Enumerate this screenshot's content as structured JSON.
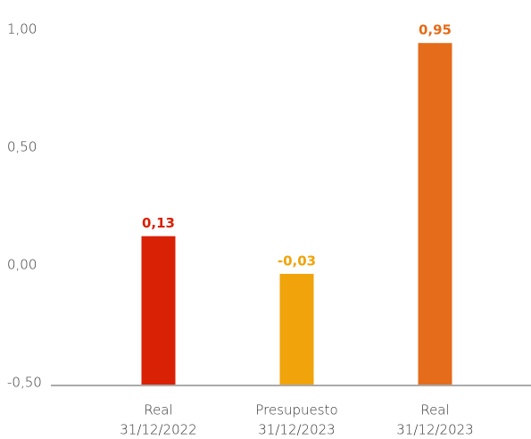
{
  "chart_data": {
    "type": "bar",
    "categories": [
      [
        "Real",
        "31/12/2022"
      ],
      [
        "Presupuesto",
        "31/12/2023"
      ],
      [
        "Real",
        "31/12/2023"
      ]
    ],
    "values": [
      0.13,
      -0.03,
      0.95
    ],
    "value_labels": [
      "0,13",
      "-0,03",
      "0,95"
    ],
    "colors": [
      "#d92106",
      "#f0a30a",
      "#e46c1a"
    ],
    "ylim": [
      -0.5,
      1.0
    ],
    "yticks": [
      {
        "value": -0.5,
        "label": "-0,50"
      },
      {
        "value": 0,
        "label": "0,00"
      },
      {
        "value": 0.5,
        "label": "0,50"
      },
      {
        "value": 1,
        "label": "1,00"
      }
    ],
    "grid": false
  }
}
